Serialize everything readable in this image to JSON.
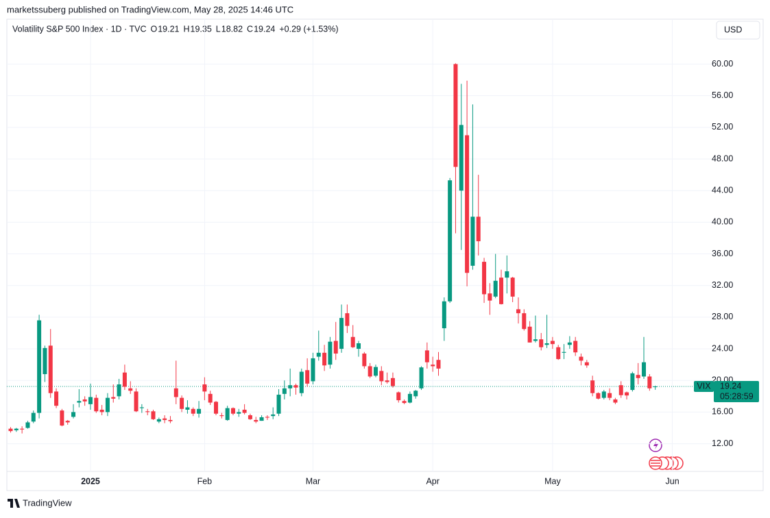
{
  "header": {
    "publisher": "marketssuberg published on TradingView.com, May 28, 2025 14:46 UTC",
    "footer": "TradingView"
  },
  "chart_data": {
    "type": "candlestick",
    "title": "Volatility S&P 500 Index · 1D · TVC",
    "legend": [
      {
        "label": "O",
        "value": 19.21
      },
      {
        "label": "H",
        "value": 19.35
      },
      {
        "label": "L",
        "value": 18.82
      },
      {
        "label": "C",
        "value": 19.24
      }
    ],
    "change": "+0.29 (+1.53%)",
    "currency": "USD",
    "symbol": "VIX",
    "last_price": 19.24,
    "countdown": "05:28:59",
    "up_color": "#089981",
    "down_color": "#f23645",
    "grid": true,
    "ylim": [
      8.5,
      65.5
    ],
    "yticks": [
      {
        "value": 12,
        "label": "12.00"
      },
      {
        "value": 16,
        "label": "16.00"
      },
      {
        "value": 20,
        "label": "20.00"
      },
      {
        "value": 24,
        "label": "24.00"
      },
      {
        "value": 28,
        "label": "28.00"
      },
      {
        "value": 32,
        "label": "32.00"
      },
      {
        "value": 36,
        "label": "36.00"
      },
      {
        "value": 40,
        "label": "40.00"
      },
      {
        "value": 44,
        "label": "44.00"
      },
      {
        "value": 48,
        "label": "48.00"
      },
      {
        "value": 52,
        "label": "52.00"
      },
      {
        "value": 56,
        "label": "56.00"
      },
      {
        "value": 60,
        "label": "60.00"
      }
    ],
    "categories": [
      null,
      null,
      null,
      null,
      null,
      null,
      null,
      null,
      null,
      null,
      null,
      null,
      null,
      null,
      "2025",
      null,
      null,
      null,
      null,
      null,
      null,
      null,
      null,
      null,
      null,
      null,
      null,
      null,
      null,
      null,
      null,
      null,
      null,
      null,
      "Feb",
      null,
      null,
      null,
      null,
      null,
      null,
      null,
      null,
      null,
      null,
      null,
      null,
      null,
      null,
      null,
      null,
      null,
      null,
      "Mar",
      null,
      null,
      null,
      null,
      null,
      null,
      null,
      null,
      null,
      null,
      null,
      null,
      null,
      null,
      null,
      null,
      null,
      null,
      null,
      null,
      "Apr",
      null,
      null,
      null,
      null,
      null,
      null,
      null,
      null,
      null,
      null,
      null,
      null,
      null,
      null,
      null,
      null,
      null,
      null,
      null,
      null,
      "May",
      null,
      null,
      null,
      null,
      null,
      null,
      null,
      null,
      null,
      null,
      null,
      null,
      null,
      null,
      null,
      null,
      null,
      null,
      null,
      null,
      "Jun"
    ],
    "open": [
      13.9,
      13.7,
      13.9,
      14.0,
      14.8,
      15.9,
      20.8,
      24.4,
      18.6,
      16.2,
      14.9,
      15.4,
      17.2,
      17.6,
      17.0,
      17.8,
      16.3,
      16.0,
      17.9,
      18.0,
      21.0,
      19.0,
      18.6,
      16.5,
      16.1,
      16.1,
      14.8,
      15.2,
      15.0,
      19.0,
      17.8,
      16.3,
      16.4,
      15.8,
      19.5,
      18.3,
      17.3,
      15.6,
      15.0,
      16.5,
      15.8,
      16.3,
      15.6,
      15.0,
      14.9,
      15.4,
      15.5,
      15.8,
      18.3,
      19.0,
      19.4,
      18.4,
      21.3,
      19.9,
      23.0,
      23.5,
      22.0,
      25.0,
      24.0,
      28.5,
      25.5,
      24.0,
      23.4,
      21.8,
      20.6,
      21.2,
      20.0,
      20.3,
      18.5,
      17.4,
      17.2,
      18.0,
      19.0,
      23.8,
      22.0,
      22.6,
      26.6,
      30.0,
      60.0,
      44.0,
      51.0,
      34.5,
      40.7,
      35.0,
      31.0,
      30.6,
      33.0,
      33.0,
      33.0,
      29.0,
      28.5,
      26.8,
      25.0,
      25.2,
      24.5,
      25.0,
      24.2,
      23.5,
      24.5,
      25.0,
      23.0,
      22.3,
      20.0,
      18.4,
      17.8,
      18.4,
      17.6,
      19.4,
      18.5,
      18.8,
      20.7,
      20.5,
      20.5,
      19.21,
      null,
      null,
      null
    ],
    "high": [
      14.1,
      14.0,
      14.2,
      14.9,
      16.2,
      28.3,
      24.4,
      26.5,
      19.0,
      16.4,
      15.0,
      17.0,
      18.9,
      18.0,
      19.6,
      18.2,
      16.9,
      18.4,
      19.5,
      20.2,
      22.0,
      19.9,
      19.0,
      17.0,
      16.4,
      16.3,
      15.3,
      15.6,
      15.5,
      22.5,
      18.1,
      17.5,
      16.6,
      17.4,
      20.4,
      18.7,
      17.4,
      15.9,
      16.8,
      16.6,
      16.4,
      17.0,
      15.8,
      15.4,
      15.6,
      15.6,
      16.6,
      18.9,
      20.0,
      21.5,
      19.6,
      21.5,
      22.8,
      23.5,
      26.3,
      24.5,
      25.5,
      27.4,
      29.6,
      29.6,
      27.0,
      25.0,
      23.6,
      22.2,
      22.0,
      21.8,
      21.0,
      21.0,
      18.6,
      17.6,
      18.6,
      18.8,
      21.8,
      24.8,
      23.0,
      23.6,
      30.5,
      45.6,
      60.1,
      57.5,
      57.9,
      54.9,
      46.0,
      35.5,
      32.3,
      36.0,
      34.0,
      35.8,
      33.1,
      30.5,
      29.0,
      27.5,
      28.2,
      26.0,
      28.3,
      25.5,
      24.5,
      24.6,
      25.6,
      25.5,
      23.4,
      22.6,
      20.6,
      18.5,
      18.8,
      19.0,
      17.8,
      19.9,
      18.6,
      21.1,
      22.2,
      25.5,
      20.8,
      19.35,
      null,
      null,
      null
    ],
    "low": [
      13.4,
      13.5,
      13.3,
      13.9,
      14.6,
      15.2,
      19.8,
      17.8,
      16.5,
      14.2,
      14.4,
      15.2,
      16.6,
      16.8,
      16.3,
      15.9,
      15.6,
      15.5,
      17.2,
      17.6,
      18.8,
      18.3,
      16.0,
      15.9,
      15.6,
      15.0,
      14.6,
      14.6,
      14.6,
      17.0,
      16.0,
      15.8,
      15.5,
      15.3,
      17.5,
      16.9,
      15.6,
      15.2,
      14.9,
      15.6,
      15.4,
      15.7,
      15.0,
      14.6,
      14.9,
      15.0,
      15.1,
      15.5,
      17.6,
      18.0,
      18.2,
      18.0,
      19.2,
      19.5,
      22.5,
      21.2,
      21.5,
      22.6,
      23.5,
      26.0,
      24.1,
      23.0,
      21.5,
      20.3,
      20.4,
      19.4,
      19.6,
      19.1,
      17.2,
      17.0,
      17.1,
      17.7,
      18.8,
      21.5,
      21.1,
      20.6,
      25.0,
      29.8,
      38.6,
      36.5,
      31.9,
      34.0,
      35.8,
      29.8,
      28.3,
      30.4,
      29.6,
      31.0,
      29.9,
      27.2,
      26.3,
      24.8,
      24.8,
      23.8,
      24.1,
      24.0,
      22.6,
      22.7,
      24.0,
      23.1,
      21.9,
      21.6,
      18.0,
      17.6,
      17.6,
      17.5,
      17.0,
      17.8,
      17.6,
      18.6,
      19.5,
      20.2,
      18.7,
      18.82,
      null,
      null,
      null
    ],
    "close": [
      13.6,
      13.9,
      13.8,
      14.7,
      15.9,
      27.6,
      24.1,
      18.4,
      16.8,
      14.3,
      14.7,
      16.0,
      17.4,
      17.35,
      17.9,
      16.1,
      16.0,
      17.8,
      17.7,
      19.5,
      19.2,
      18.7,
      16.1,
      16.6,
      16.0,
      15.1,
      15.1,
      15.0,
      14.85,
      17.9,
      16.4,
      16.6,
      15.8,
      16.4,
      18.6,
      17.2,
      15.8,
      15.5,
      16.5,
      15.8,
      16.0,
      15.9,
      15.1,
      14.8,
      15.35,
      15.3,
      15.7,
      18.2,
      19.0,
      19.4,
      19.1,
      21.1,
      19.6,
      22.8,
      23.5,
      21.9,
      24.9,
      23.4,
      27.9,
      26.9,
      24.2,
      24.7,
      21.8,
      20.5,
      21.7,
      19.9,
      19.8,
      19.3,
      17.5,
      17.15,
      18.3,
      18.7,
      21.65,
      22.3,
      21.8,
      21.5,
      30.0,
      45.3,
      47.0,
      52.3,
      33.6,
      40.7,
      37.6,
      30.9,
      30.1,
      32.6,
      29.65,
      33.8,
      30.6,
      28.5,
      26.5,
      24.8,
      25.2,
      24.2,
      24.7,
      24.6,
      22.7,
      23.6,
      24.8,
      23.55,
      22.5,
      21.9,
      18.4,
      17.7,
      18.6,
      17.8,
      17.2,
      18.14,
      18.1,
      20.9,
      20.3,
      22.3,
      19.0,
      19.24,
      null,
      null,
      null
    ]
  }
}
